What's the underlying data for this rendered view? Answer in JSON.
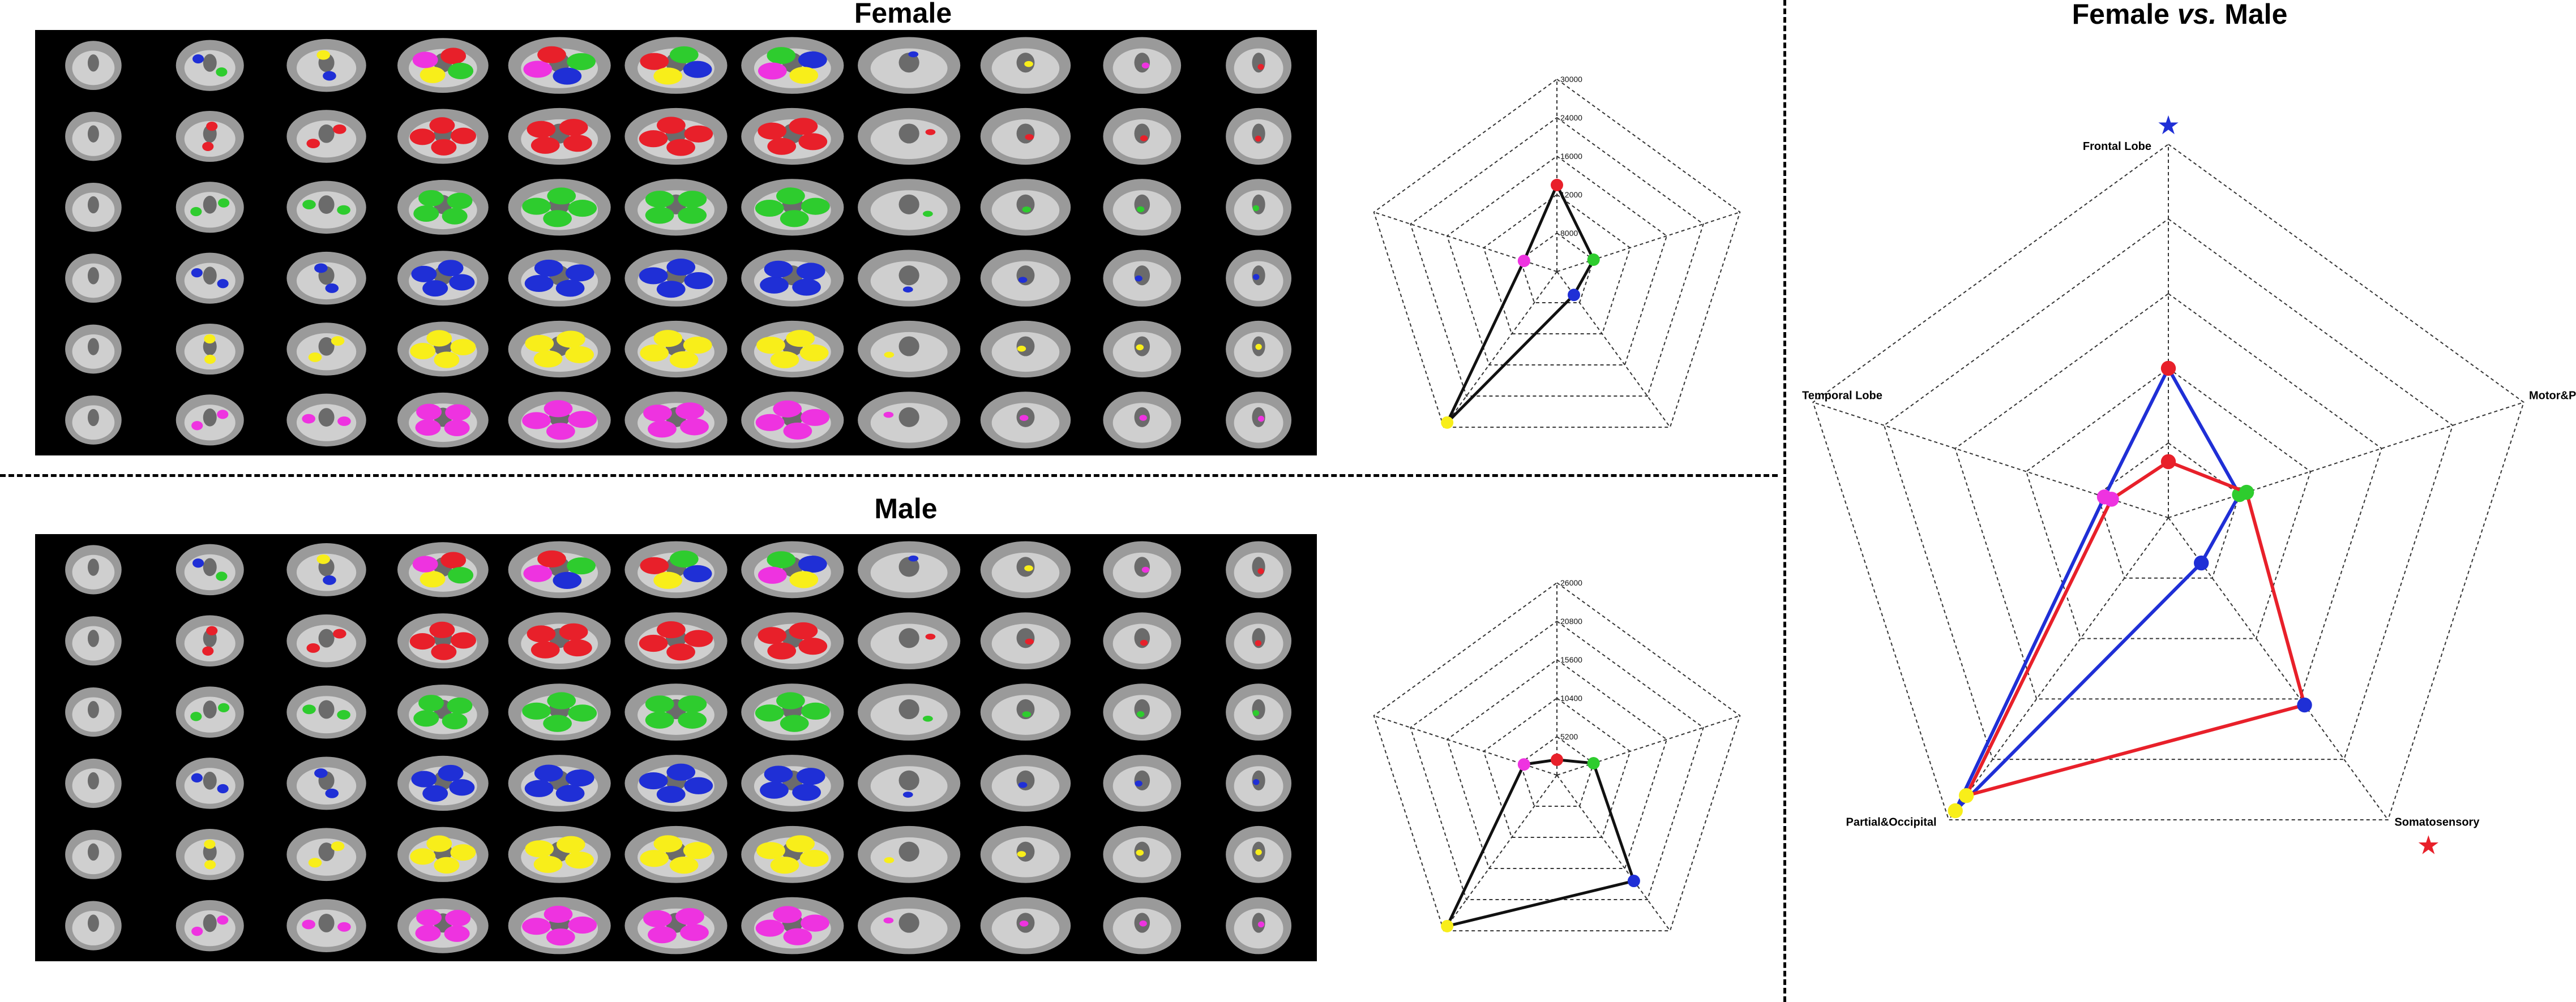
{
  "titles": {
    "female": "Female",
    "male": "Male",
    "comparison_a": "Female ",
    "comparison_vs": "vs.",
    "comparison_b": " Male"
  },
  "colors": {
    "frontal": "#e8202a",
    "motor": "#2ecc2e",
    "somato": "#1f2fd6",
    "parietal": "#f8ee1a",
    "temporal": "#ee33e0",
    "female_line": "#1f2fd6",
    "male_line": "#e8202a",
    "small_line": "#111111"
  },
  "slice_grid": {
    "rows": 6,
    "cols": 11,
    "row_colors": [
      "mixed",
      "frontal",
      "motor",
      "somato",
      "parietal",
      "temporal"
    ]
  },
  "chart_data": [
    {
      "type": "radar",
      "name_shown": "",
      "axes": [
        "Frontal Lobe",
        "Motor&Premotor",
        "Somatosensory",
        "Partial&Occipital",
        "Temporal Lobe"
      ],
      "tick_labels": [
        "8000",
        "12000",
        "16000",
        "24000",
        "30000"
      ],
      "values": [
        0.45,
        0.2,
        0.15,
        0.97,
        0.18
      ]
    },
    {
      "type": "radar",
      "axes": [
        "Frontal Lobe",
        "Motor&Premotor",
        "Somatosensory",
        "Partial&Occipital",
        "Temporal Lobe"
      ],
      "tick_labels": [
        "5200",
        "10400",
        "15600",
        "20800",
        "26000"
      ],
      "values": [
        0.08,
        0.2,
        0.68,
        0.97,
        0.18
      ]
    },
    {
      "type": "radar",
      "axes": [
        "Frontal Lobe",
        "Motor&Premotor",
        "Somatosensory",
        "Partial&Occipital",
        "Temporal Lobe"
      ],
      "series": [
        {
          "name": "Female",
          "values": [
            0.4,
            0.2,
            0.15,
            0.97,
            0.18
          ]
        },
        {
          "name": "Male",
          "values": [
            0.15,
            0.22,
            0.62,
            0.92,
            0.16
          ]
        }
      ],
      "markers": {
        "frontal_star": "★",
        "somato_star": "★"
      }
    }
  ]
}
